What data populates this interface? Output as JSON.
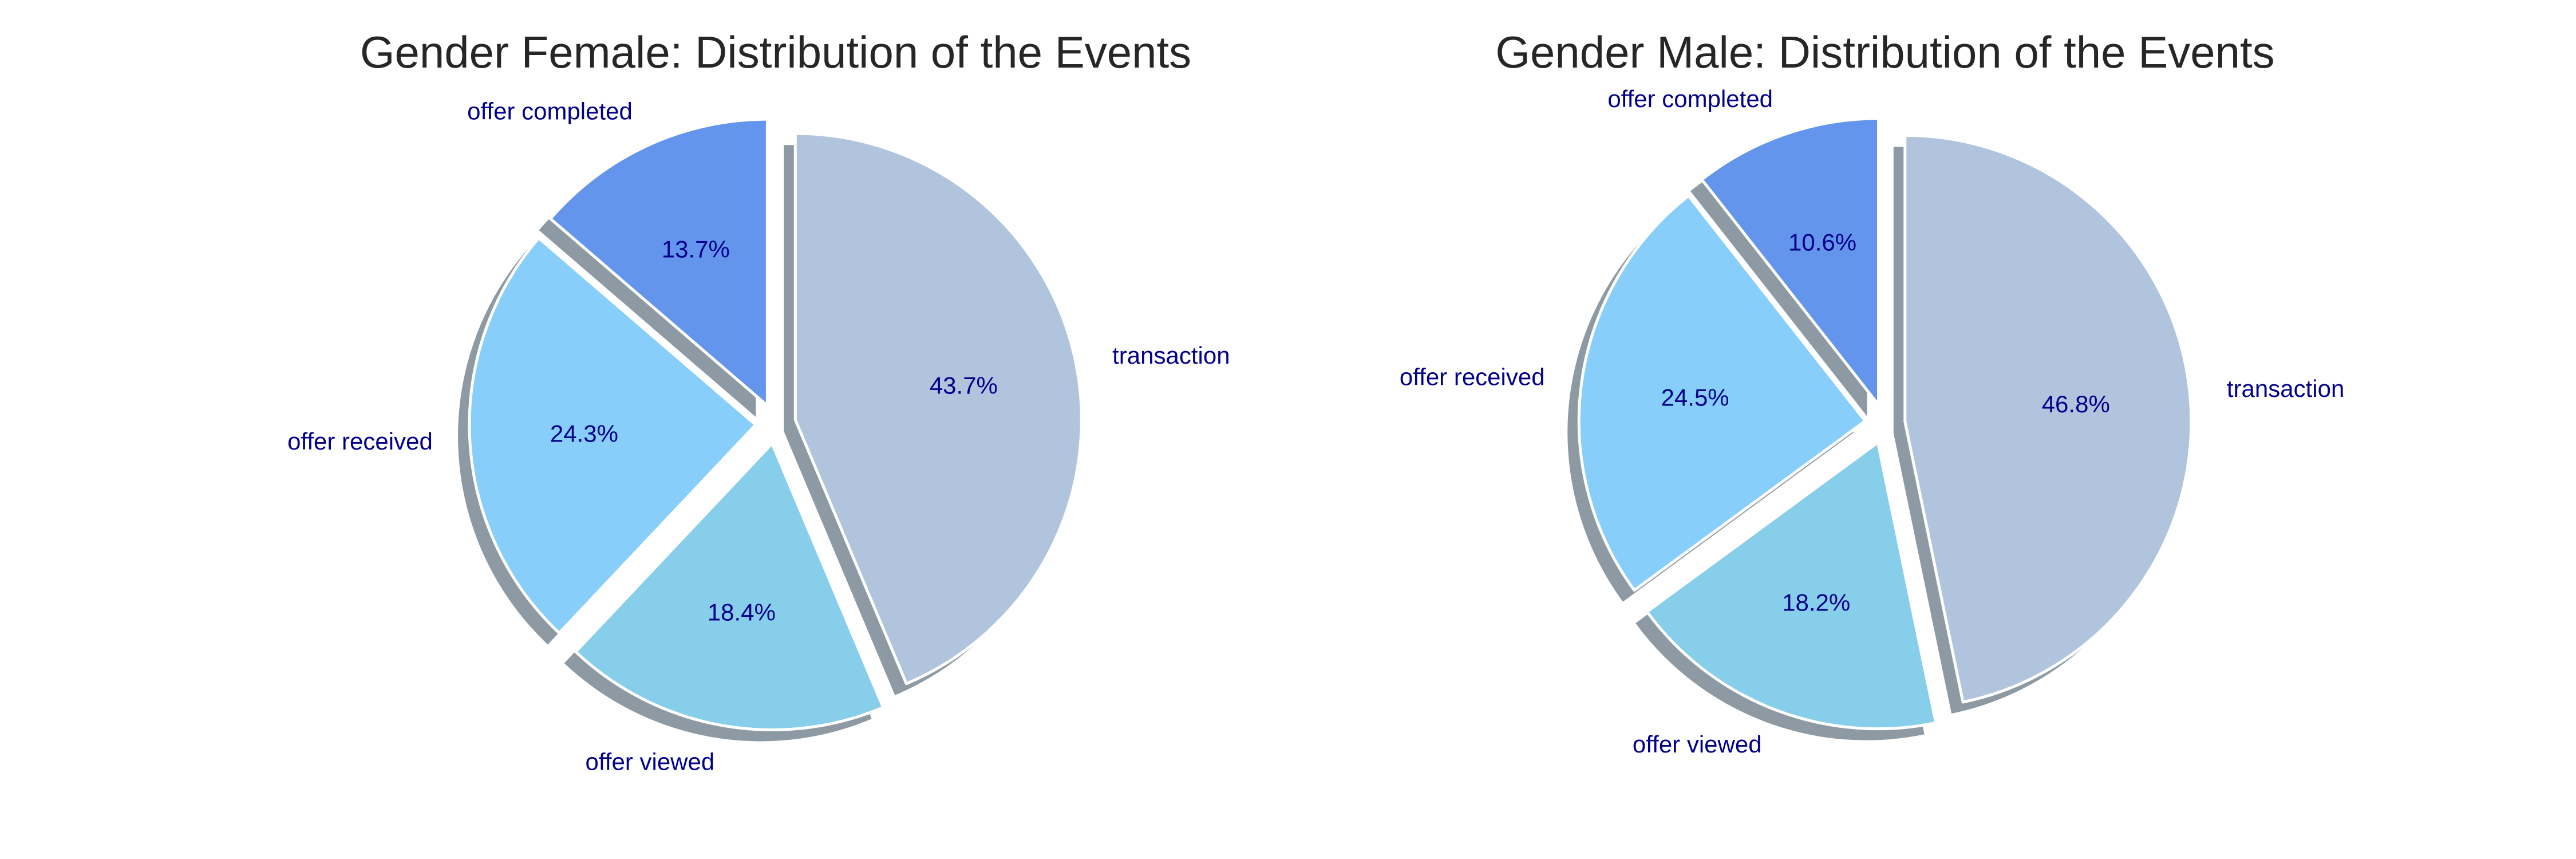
{
  "chart_data": [
    {
      "type": "pie",
      "title": "Gender Female: Distribution of the Events",
      "labels": [
        "offer completed",
        "offer received",
        "offer viewed",
        "transaction"
      ],
      "values": [
        13.7,
        24.3,
        18.4,
        43.7
      ],
      "value_labels": [
        "13.7%",
        "24.3%",
        "18.4%",
        "43.7%"
      ],
      "colors": [
        "#6495ED",
        "#87CEFA",
        "#87CEEB",
        "#B0C4DE"
      ],
      "label_color": "#00008B",
      "shadow_color": "#8e9aa3",
      "start_angle_deg": 90,
      "direction": "counterclockwise",
      "exploded": true,
      "shadow": true
    },
    {
      "type": "pie",
      "title": "Gender Male: Distribution of the Events",
      "labels": [
        "offer completed",
        "offer received",
        "offer viewed",
        "transaction"
      ],
      "values": [
        10.6,
        24.5,
        18.2,
        46.8
      ],
      "value_labels": [
        "10.6%",
        "24.5%",
        "18.2%",
        "46.8%"
      ],
      "colors": [
        "#6495ED",
        "#87CEFA",
        "#87CEEB",
        "#B0C4DE"
      ],
      "label_color": "#00008B",
      "shadow_color": "#8e9aa3",
      "start_angle_deg": 90,
      "direction": "counterclockwise",
      "exploded": true,
      "shadow": true
    }
  ]
}
